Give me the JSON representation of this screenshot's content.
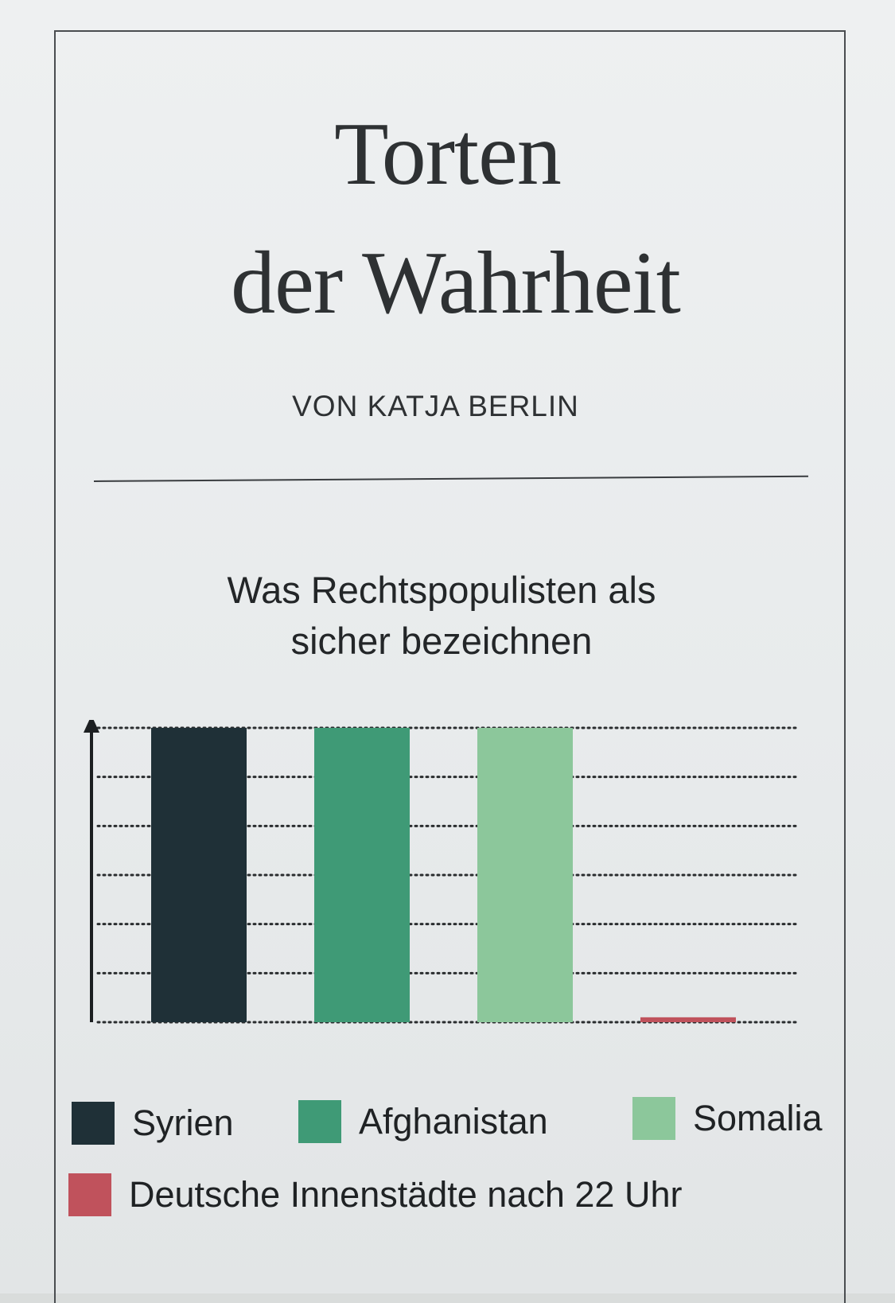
{
  "article": {
    "title_line1": "Torten",
    "title_line2": "der Wahrheit",
    "byline": "VON KATJA BERLIN"
  },
  "chart_data": {
    "type": "bar",
    "title": "Was Rechtspopulisten als sicher bezeichnen",
    "title_lines": [
      "Was Rechtspopulisten als",
      "sicher bezeichnen"
    ],
    "categories": [
      "Syrien",
      "Afghanistan",
      "Somalia",
      "Deutsche Innenstädte nach 22 Uhr"
    ],
    "values": [
      6,
      6,
      6,
      0.1
    ],
    "ylim": [
      0,
      6
    ],
    "grid": true,
    "xlabel": "",
    "ylabel": "",
    "colors": [
      "#1f3037",
      "#3f9a76",
      "#8cc79b",
      "#c0525c"
    ],
    "legend": [
      {
        "label": "Syrien",
        "color": "#1f3037"
      },
      {
        "label": "Afghanistan",
        "color": "#3f9a76"
      },
      {
        "label": "Somalia",
        "color": "#8cc79b"
      },
      {
        "label": "Deutsche Innenstädte nach 22 Uhr",
        "color": "#c0525c"
      }
    ]
  }
}
